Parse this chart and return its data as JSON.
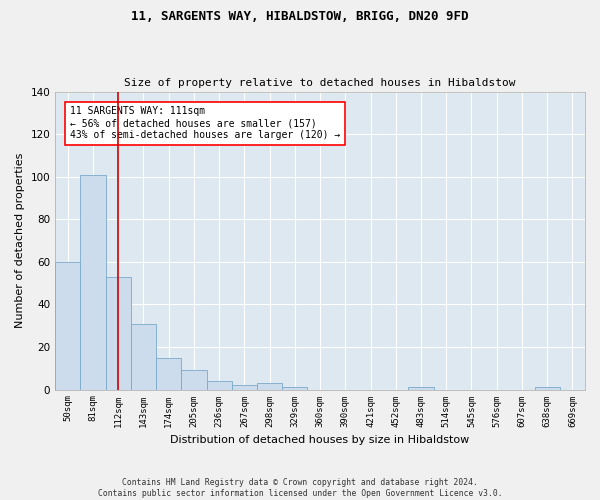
{
  "title": "11, SARGENTS WAY, HIBALDSTOW, BRIGG, DN20 9FD",
  "subtitle": "Size of property relative to detached houses in Hibaldstow",
  "xlabel": "Distribution of detached houses by size in Hibaldstow",
  "ylabel": "Number of detached properties",
  "bin_labels": [
    "50sqm",
    "81sqm",
    "112sqm",
    "143sqm",
    "174sqm",
    "205sqm",
    "236sqm",
    "267sqm",
    "298sqm",
    "329sqm",
    "360sqm",
    "390sqm",
    "421sqm",
    "452sqm",
    "483sqm",
    "514sqm",
    "545sqm",
    "576sqm",
    "607sqm",
    "638sqm",
    "669sqm"
  ],
  "bar_values": [
    60,
    101,
    53,
    31,
    15,
    9,
    4,
    2,
    3,
    1,
    0,
    0,
    0,
    0,
    1,
    0,
    0,
    0,
    0,
    1,
    0
  ],
  "bar_color": "#ccdcec",
  "bar_edge_color": "#7aaaca",
  "ylim": [
    0,
    140
  ],
  "yticks": [
    0,
    20,
    40,
    60,
    80,
    100,
    120,
    140
  ],
  "property_line_x": 2,
  "property_line_color": "#cc0000",
  "annotation_text": "11 SARGENTS WAY: 111sqm\n← 56% of detached houses are smaller (157)\n43% of semi-detached houses are larger (120) →",
  "footer_text": "Contains HM Land Registry data © Crown copyright and database right 2024.\nContains public sector information licensed under the Open Government Licence v3.0.",
  "background_color": "#dde8f0",
  "grid_color": "#ffffff",
  "fig_background": "#f0f0f0"
}
